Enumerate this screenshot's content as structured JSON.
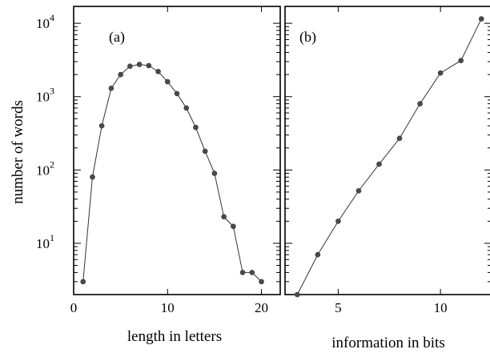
{
  "chart_data": [
    {
      "type": "line",
      "panel_label": "(a)",
      "xlabel": "length in letters",
      "ylabel": "number of words",
      "yscale": "log",
      "xlim": [
        0,
        22
      ],
      "ylim": [
        2,
        17000
      ],
      "x_ticks": [
        0,
        10,
        20
      ],
      "y_ticks": [
        {
          "base": "10",
          "exp": "1",
          "value": 10
        },
        {
          "base": "10",
          "exp": "2",
          "value": 100
        },
        {
          "base": "10",
          "exp": "3",
          "value": 1000
        },
        {
          "base": "10",
          "exp": "4",
          "value": 10000
        }
      ],
      "grid": false,
      "series": [
        {
          "x": [
            1,
            2,
            3,
            4,
            5,
            6,
            7,
            8,
            9,
            10,
            11,
            12,
            13,
            14,
            15,
            16,
            17,
            18,
            19,
            20
          ],
          "values": [
            3,
            80,
            400,
            1300,
            2000,
            2600,
            2750,
            2650,
            2200,
            1600,
            1100,
            700,
            380,
            180,
            90,
            23,
            17,
            4,
            4,
            3
          ]
        }
      ]
    },
    {
      "type": "line",
      "panel_label": "(b)",
      "xlabel": "information in bits",
      "ylabel": "",
      "yscale": "log",
      "xlim": [
        2.4,
        12.5
      ],
      "ylim": [
        2,
        17000
      ],
      "x_ticks": [
        5,
        10
      ],
      "grid": false,
      "series": [
        {
          "x": [
            3,
            4,
            5,
            6,
            7,
            8,
            9,
            10,
            11,
            12
          ],
          "values": [
            2,
            7,
            20,
            52,
            120,
            270,
            800,
            2100,
            3100,
            11500
          ]
        }
      ]
    }
  ]
}
